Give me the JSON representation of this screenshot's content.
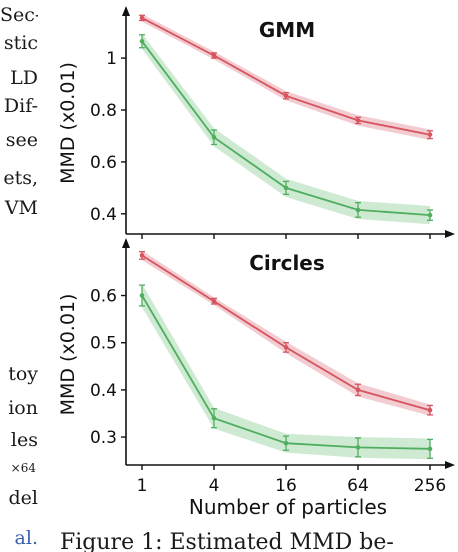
{
  "left_column_fragments": [
    {
      "text": "Sec-",
      "style": "normal"
    },
    {
      "text": "stic",
      "style": "normal"
    },
    {
      "text": "LD",
      "style": "normal"
    },
    {
      "text": "Dif-",
      "style": "normal"
    },
    {
      "text": "see",
      "style": "normal"
    },
    {
      "text": "ets,",
      "style": "normal"
    },
    {
      "text": "VM",
      "style": "normal"
    },
    {
      "text": "toy",
      "style": "normal"
    },
    {
      "text": "ion",
      "style": "normal"
    },
    {
      "text": "les",
      "style": "normal"
    },
    {
      "text": "×64",
      "style": "small"
    },
    {
      "text": "del",
      "style": "normal"
    },
    {
      "text": "al.",
      "style": "cite"
    }
  ],
  "caption": "Figure 1: Estimated MMD be-",
  "chart_data": [
    {
      "type": "line",
      "title": "GMM",
      "xlabel": "",
      "ylabel": "MMD (x0.01)",
      "x": [
        1,
        4,
        16,
        64,
        256
      ],
      "x_scale": "log",
      "ylim": [
        0.33,
        1.17
      ],
      "yticks": [
        "0.4",
        "0.6",
        "0.8",
        "1"
      ],
      "ytick_values": [
        0.4,
        0.6,
        0.8,
        1.0
      ],
      "series": [
        {
          "color": "#d6545f",
          "band_color": "#e8a3aa",
          "values": [
            1.155,
            1.01,
            0.855,
            0.76,
            0.705
          ],
          "error": [
            0.01,
            0.01,
            0.012,
            0.012,
            0.015
          ],
          "band": [
            0.015,
            0.015,
            0.018,
            0.02,
            0.02
          ]
        },
        {
          "color": "#4fae5f",
          "band_color": "#a8d8ae",
          "values": [
            1.065,
            0.695,
            0.5,
            0.415,
            0.395
          ],
          "error": [
            0.025,
            0.028,
            0.025,
            0.028,
            0.02
          ],
          "band": [
            0.03,
            0.035,
            0.035,
            0.035,
            0.035
          ]
        }
      ]
    },
    {
      "type": "line",
      "title": "Circles",
      "xlabel": "Number of particles",
      "ylabel": "MMD (x0.01)",
      "x": [
        1,
        4,
        16,
        64,
        256
      ],
      "x_scale": "log",
      "xticks": [
        "1",
        "4",
        "16",
        "64",
        "256"
      ],
      "ylim": [
        0.245,
        0.705
      ],
      "yticks": [
        "0.3",
        "0.4",
        "0.5",
        "0.6"
      ],
      "ytick_values": [
        0.3,
        0.4,
        0.5,
        0.6
      ],
      "series": [
        {
          "color": "#d6545f",
          "band_color": "#e8a3aa",
          "values": [
            0.685,
            0.588,
            0.49,
            0.4,
            0.357
          ],
          "error": [
            0.008,
            0.006,
            0.01,
            0.012,
            0.01
          ],
          "band": [
            0.01,
            0.008,
            0.012,
            0.014,
            0.012
          ]
        },
        {
          "color": "#4fae5f",
          "band_color": "#a8d8ae",
          "values": [
            0.6,
            0.34,
            0.287,
            0.278,
            0.275
          ],
          "error": [
            0.022,
            0.02,
            0.015,
            0.02,
            0.02
          ],
          "band": [
            0.025,
            0.022,
            0.02,
            0.022,
            0.022
          ]
        }
      ]
    }
  ]
}
